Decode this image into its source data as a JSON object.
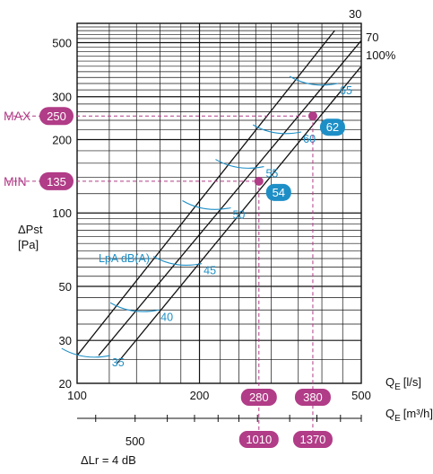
{
  "chart_data": {
    "type": "line",
    "x_scale": "log",
    "y_scale": "log",
    "xlim": [
      100,
      500
    ],
    "ylim": [
      20,
      600
    ],
    "x_ticks": [
      "100",
      "200",
      "500"
    ],
    "y_ticks": [
      "20",
      "30",
      "50",
      "100",
      "200",
      "300",
      "500"
    ],
    "ylabel": "ΔPst",
    "ylabel_unit": "[Pa]",
    "xlabel": "Q",
    "xlabel_sub": "E",
    "xlabel_unit": "[l/s]",
    "x2label": "Q",
    "x2label_sub": "E",
    "x2label_unit": "[m³/h]",
    "x2_ticks": [
      "500"
    ],
    "lr_note": "ΔLr = 4 dB",
    "lpa_label": "LpA dB(A)",
    "series": [
      {
        "name": "30",
        "x": [
          100,
          430
        ],
        "y": [
          26,
          560
        ]
      },
      {
        "name": "70",
        "x": [
          113,
          500
        ],
        "y": [
          26,
          510
        ]
      },
      {
        "name": "100%",
        "x": [
          125,
          500
        ],
        "y": [
          24,
          400
        ]
      }
    ],
    "lpa_levels": [
      {
        "label": "35",
        "x": 110,
        "y": 26
      },
      {
        "label": "40",
        "x": 145,
        "y": 40
      },
      {
        "label": "45",
        "x": 185,
        "y": 62
      },
      {
        "label": "50",
        "x": 218,
        "y": 105
      },
      {
        "label": "55",
        "x": 263,
        "y": 155
      },
      {
        "label": "60",
        "x": 325,
        "y": 215
      },
      {
        "label": "65",
        "x": 400,
        "y": 340
      }
    ],
    "operating_points": [
      {
        "label": "MIN",
        "pressure": "135",
        "flow_ls": "280",
        "flow_m3h": "1010",
        "level": "54",
        "x": 280,
        "y": 135
      },
      {
        "label": "MAX",
        "pressure": "250",
        "flow_ls": "380",
        "flow_m3h": "1370",
        "level": "62",
        "x": 380,
        "y": 250
      }
    ],
    "colors": {
      "grid": "#111111",
      "lines": "#111111",
      "lpa": "#1e8fc6",
      "highlight": "#b13c87"
    }
  }
}
